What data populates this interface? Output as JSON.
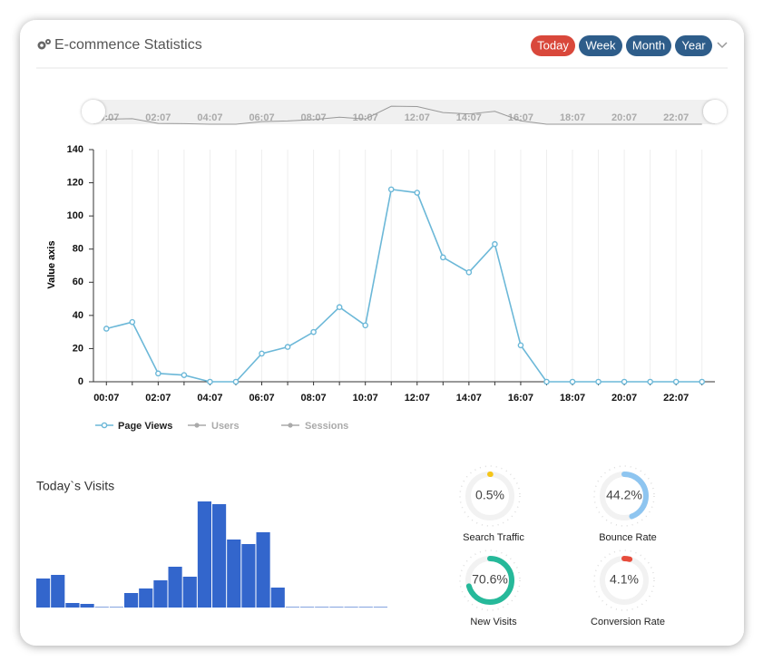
{
  "header": {
    "title": "E-commence Statistics",
    "buttons": [
      "Today",
      "Week",
      "Month",
      "Year"
    ]
  },
  "chart_data": [
    {
      "type": "line",
      "y_axis_label": "Value axis",
      "categories": [
        "00:07",
        null,
        "02:07",
        null,
        "04:07",
        null,
        "06:07",
        null,
        "08:07",
        null,
        "10:07",
        null,
        "12:07",
        null,
        "14:07",
        null,
        "16:07",
        null,
        "18:07",
        null,
        "20:07",
        null,
        "22:07",
        null
      ],
      "series": [
        {
          "name": "Page Views",
          "color": "#6cb8d8",
          "values": [
            32,
            36,
            5,
            4,
            0,
            0,
            17,
            21,
            30,
            45,
            34,
            116,
            114,
            75,
            66,
            83,
            22,
            0,
            0,
            0,
            0,
            0,
            0,
            0
          ]
        }
      ],
      "inactive_legend": [
        "Users",
        "Sessions"
      ],
      "ylim": [
        0,
        140
      ],
      "yticks": [
        0,
        20,
        40,
        60,
        80,
        100,
        120,
        140
      ],
      "grid": true
    },
    {
      "type": "bar",
      "title": "Today`s Visits",
      "color": "#3366cc",
      "values": [
        32,
        36,
        5,
        4,
        0,
        0,
        16,
        21,
        30,
        45,
        34,
        117,
        114,
        75,
        70,
        83,
        22,
        0,
        0,
        0,
        0,
        0,
        0,
        0
      ]
    },
    {
      "type": "gauge",
      "categories": [
        "Search Traffic",
        "Bounce Rate",
        "New Visits",
        "Conversion Rate"
      ],
      "values": [
        0.5,
        44.2,
        70.6,
        4.1
      ],
      "value_labels": [
        "0.5%",
        "44.2%",
        "70.6%",
        "4.1%"
      ],
      "colors": [
        "#f5c518",
        "#8ec5f0",
        "#26b99a",
        "#e74c3c"
      ]
    }
  ]
}
